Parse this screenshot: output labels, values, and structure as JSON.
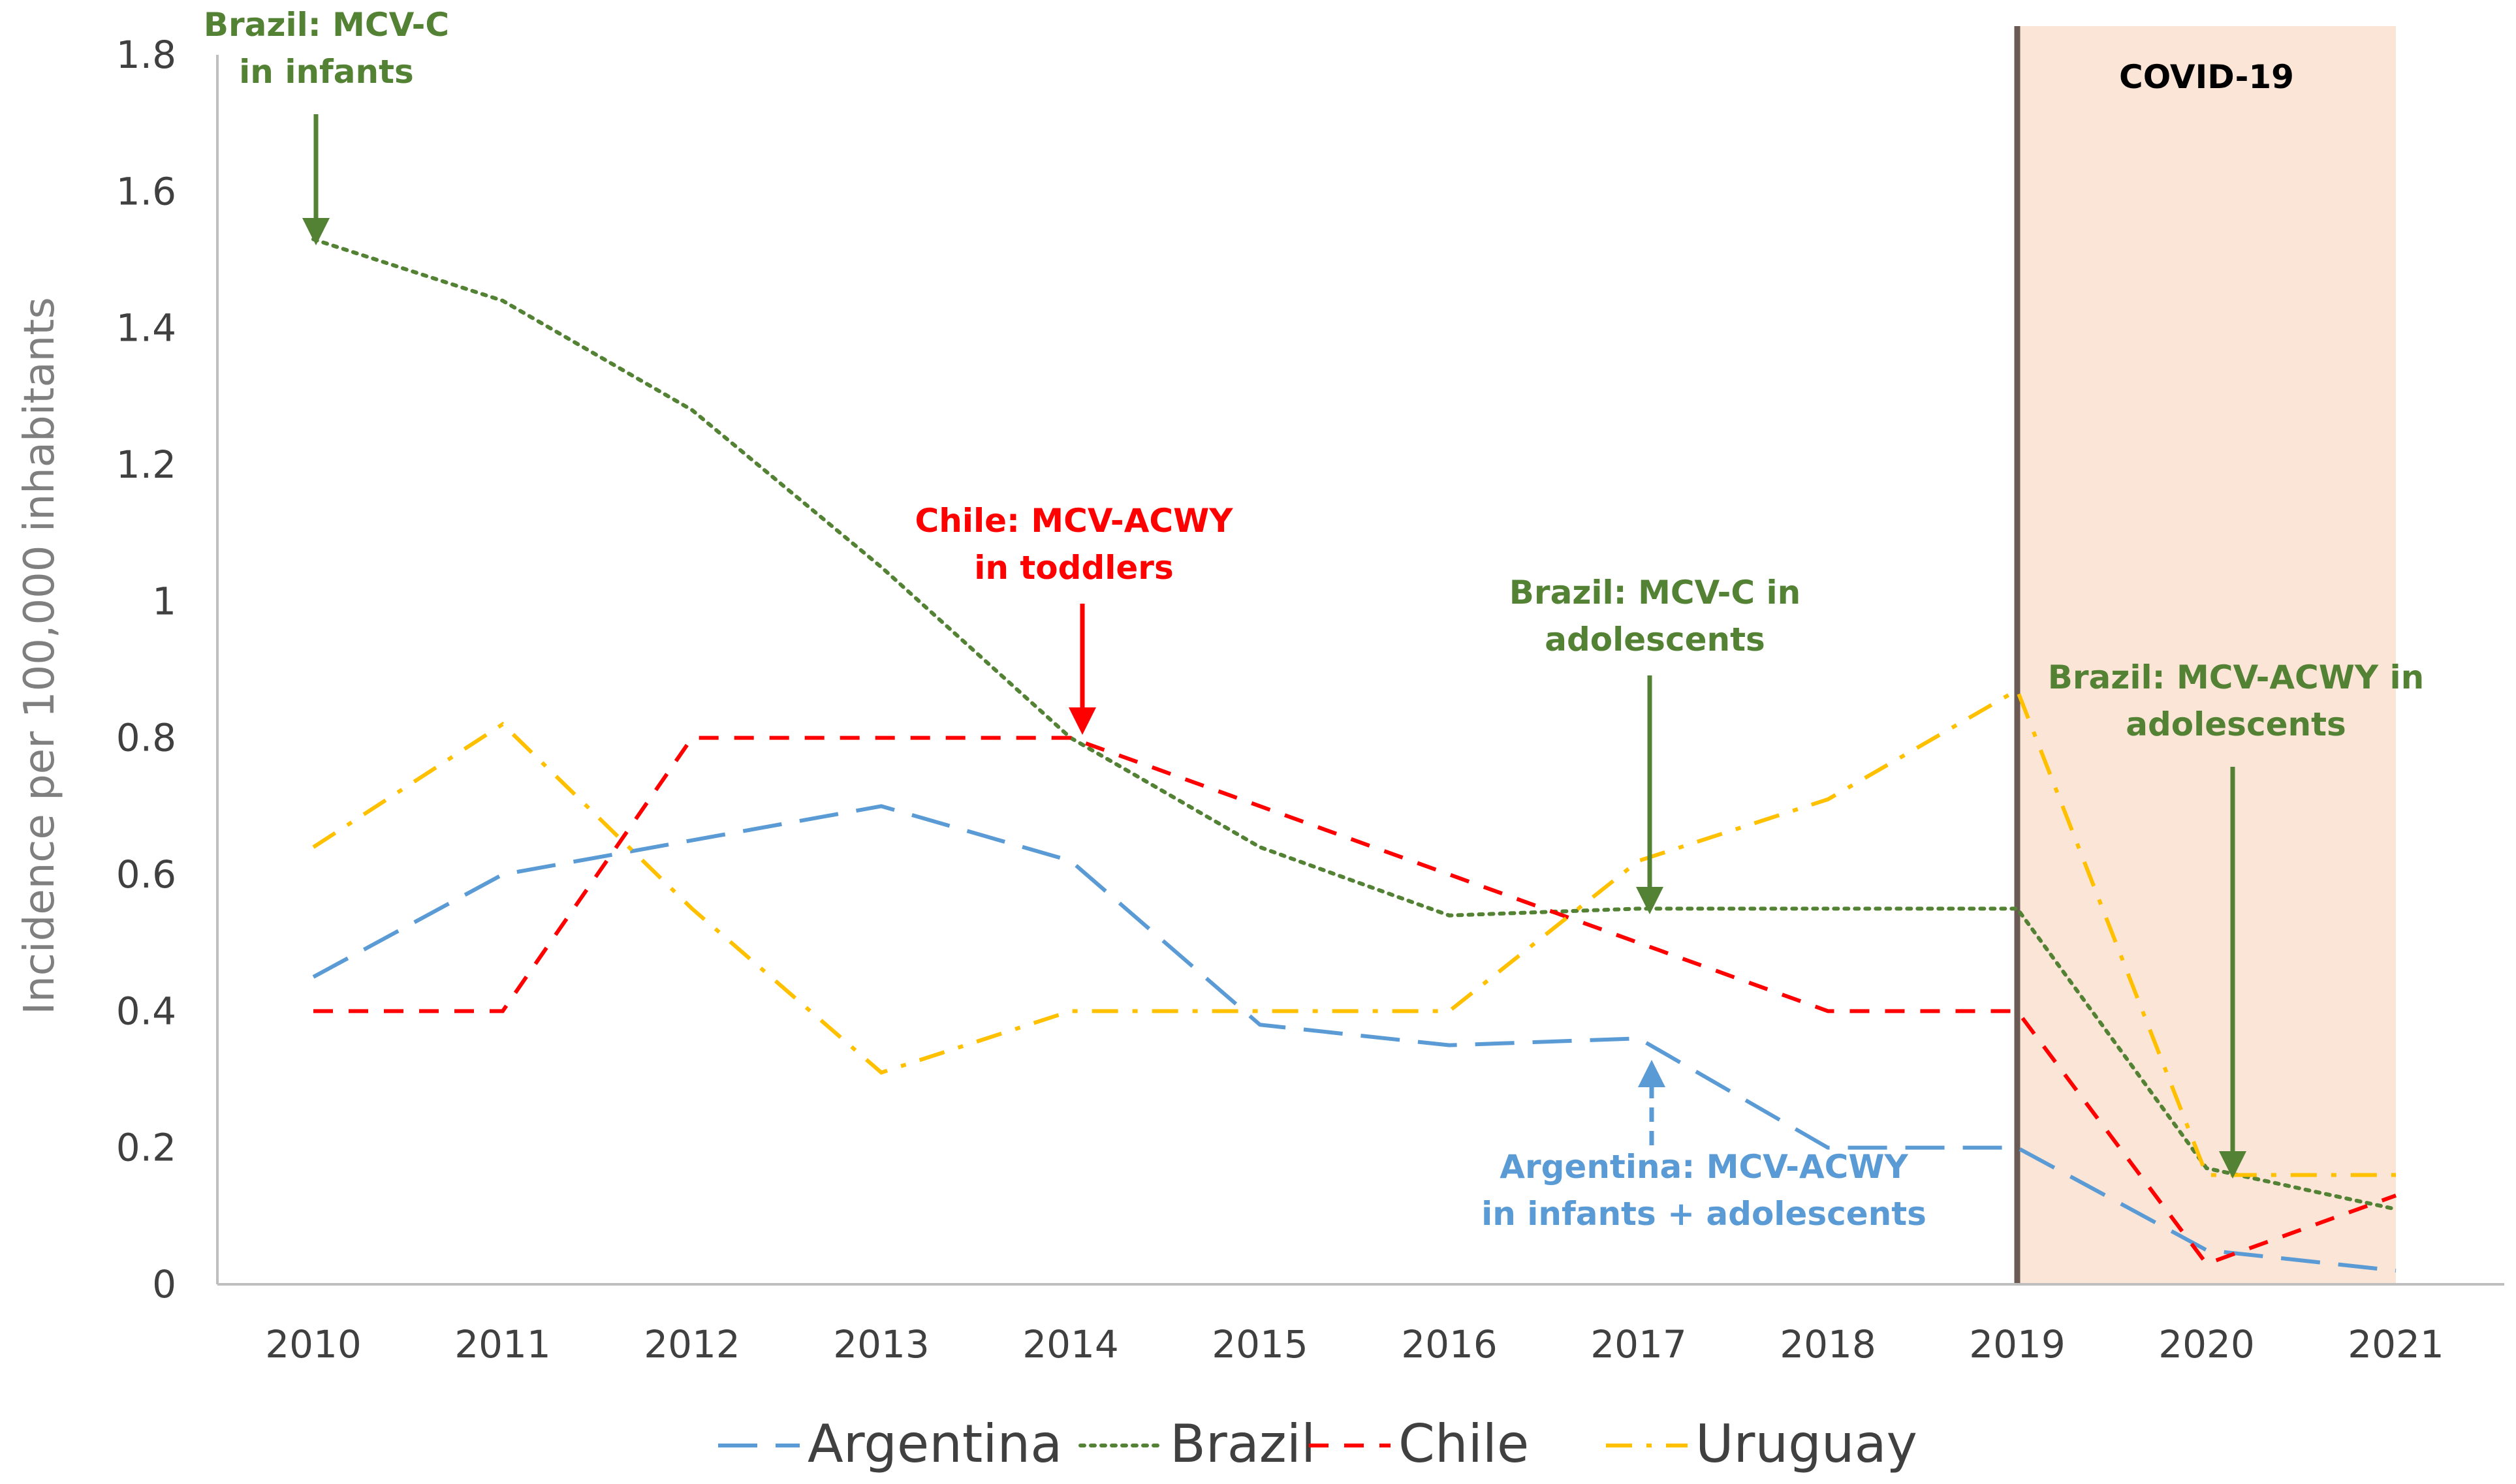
{
  "chart_data": {
    "type": "line",
    "title": "",
    "xlabel": "",
    "ylabel": "Incidence per 100,000 inhabitants",
    "categories": [
      "2010",
      "2011",
      "2012",
      "2013",
      "2014",
      "2015",
      "2016",
      "2017",
      "2018",
      "2019",
      "2020",
      "2021"
    ],
    "ylim": [
      0,
      1.8
    ],
    "yticks": [
      "0",
      "0.2",
      "0.4",
      "0.6",
      "0.8",
      "1",
      "1.2",
      "1.4",
      "1.6",
      "1.8"
    ],
    "grid": false,
    "legend_position": "bottom",
    "series": [
      {
        "name": "Argentina",
        "color": "#5b9bd5",
        "dash": "long-dash",
        "values": [
          0.45,
          0.6,
          0.65,
          0.7,
          0.62,
          0.38,
          0.35,
          0.36,
          0.2,
          0.2,
          0.05,
          0.02
        ]
      },
      {
        "name": "Brazil",
        "color": "#548235",
        "dash": "dotted",
        "values": [
          1.53,
          1.44,
          1.28,
          1.05,
          0.8,
          0.64,
          0.54,
          0.55,
          0.55,
          0.55,
          0.17,
          0.11
        ]
      },
      {
        "name": "Chile",
        "color": "#ff0000",
        "dash": "dashed",
        "values": [
          0.4,
          0.4,
          0.8,
          0.8,
          0.8,
          0.7,
          0.6,
          0.5,
          0.4,
          0.4,
          0.03,
          0.13
        ]
      },
      {
        "name": "Uruguay",
        "color": "#ffc000",
        "dash": "dash-dot",
        "values": [
          0.64,
          0.82,
          0.55,
          0.31,
          0.4,
          0.4,
          0.4,
          0.62,
          0.71,
          0.87,
          0.16,
          0.16
        ]
      }
    ],
    "shaded_region": {
      "label": "COVID-19",
      "from": "2019",
      "to": "2021",
      "color": "#fbe5d6"
    },
    "annotations": [
      {
        "id": "brazil-mcvc-infants",
        "lines": [
          "Brazil: MCV-C",
          "in infants"
        ],
        "color": "#548235",
        "year": "2010",
        "arrow": "down",
        "arrow_to": 1.53
      },
      {
        "id": "chile-mcvacwy-toddlers",
        "lines": [
          "Chile:  MCV-ACWY",
          "in toddlers"
        ],
        "color": "#ff0000",
        "year": "2014",
        "arrow": "down",
        "arrow_to": 0.8
      },
      {
        "id": "brazil-mcvc-adolescents",
        "lines": [
          "Brazil: MCV-C in",
          "adolescents"
        ],
        "color": "#548235",
        "year": "2017",
        "arrow": "down",
        "arrow_to": 0.55
      },
      {
        "id": "brazil-mcvacwy-adolescents",
        "lines": [
          "Brazil: MCV-ACWY in",
          "adolescents"
        ],
        "color": "#548235",
        "year": "2020",
        "arrow": "down",
        "arrow_to": 0.17
      },
      {
        "id": "argentina-mcvacwy",
        "lines": [
          "Argentina: MCV-ACWY",
          "in infants + adolescents"
        ],
        "color": "#5b9bd5",
        "year": "2017",
        "arrow": "up",
        "arrow_to": 0.36
      }
    ]
  }
}
